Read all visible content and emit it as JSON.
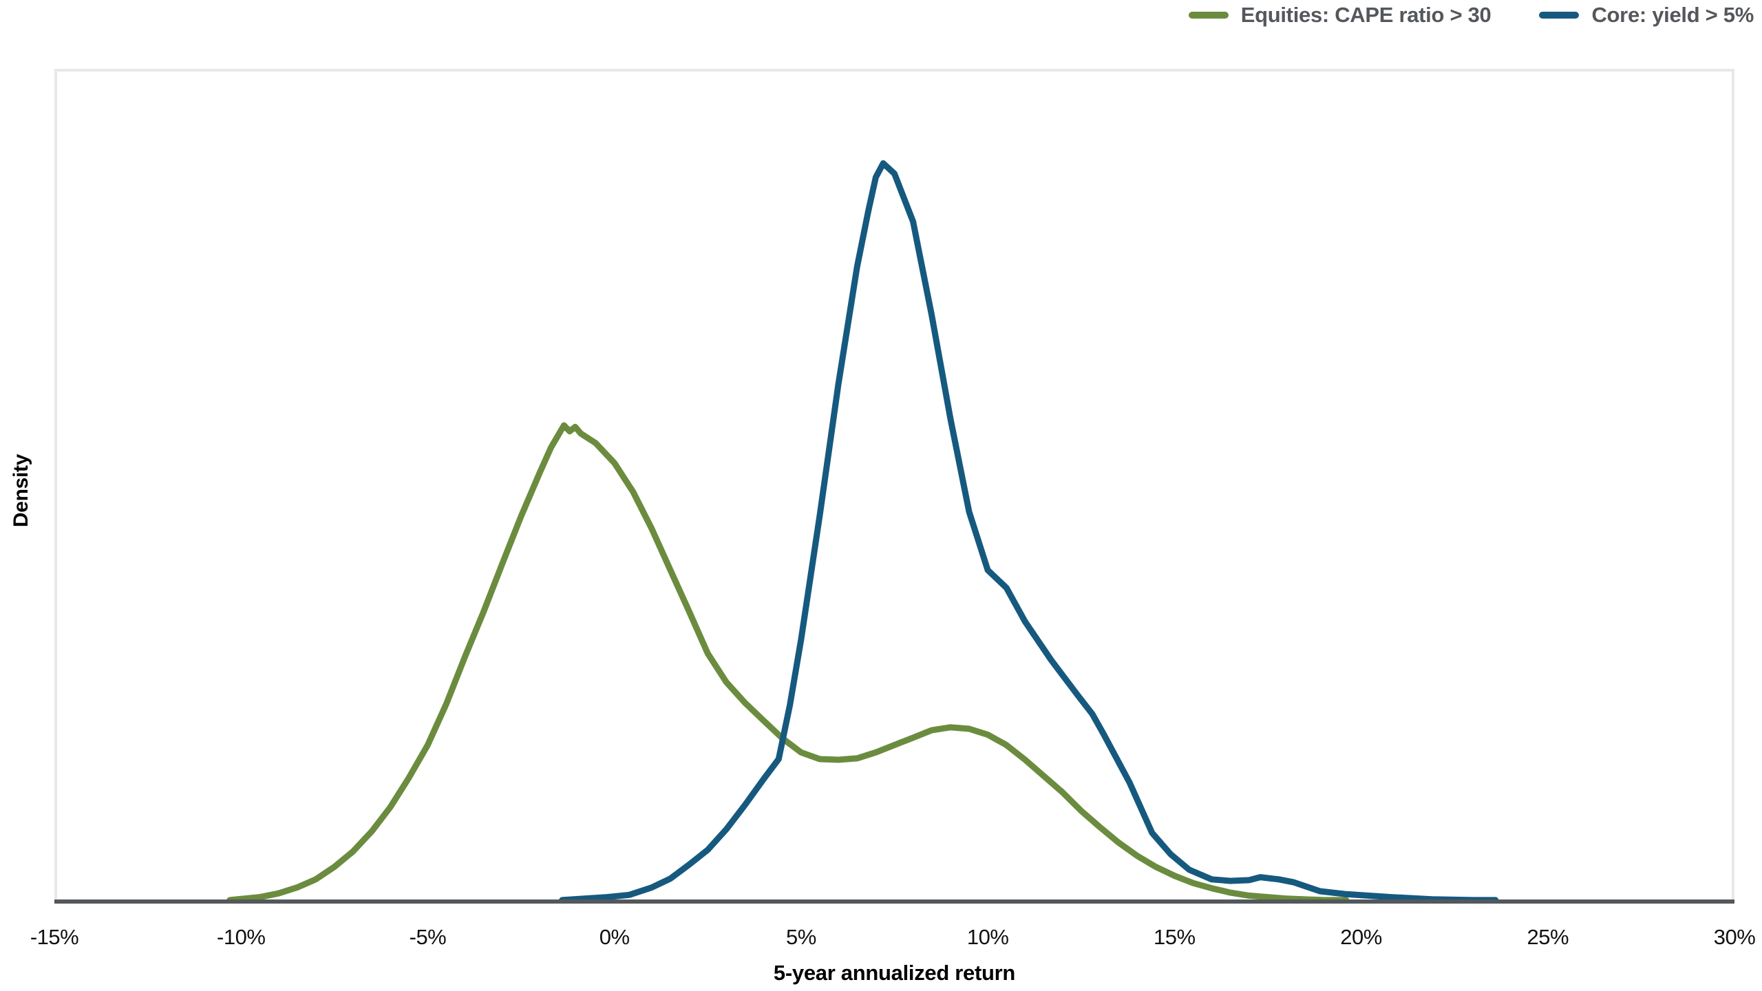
{
  "chart_data": {
    "type": "line",
    "subtype": "density",
    "title": "",
    "xlabel": "5-year annualized return",
    "ylabel": "Density",
    "xlim": [
      -15,
      30
    ],
    "ylim": [
      0,
      1.128
    ],
    "y_note": "relative density, no y tick labels shown (blue peak = 1.0)",
    "grid": false,
    "legend_position": "top-right",
    "x_ticks": [
      {
        "value": -15,
        "label": "-15%"
      },
      {
        "value": -10,
        "label": "-10%"
      },
      {
        "value": -5,
        "label": "-5%"
      },
      {
        "value": 0,
        "label": "0%"
      },
      {
        "value": 5,
        "label": "5%"
      },
      {
        "value": 10,
        "label": "10%"
      },
      {
        "value": 15,
        "label": "15%"
      },
      {
        "value": 20,
        "label": "20%"
      },
      {
        "value": 25,
        "label": "25%"
      },
      {
        "value": 30,
        "label": "30%"
      }
    ],
    "series": [
      {
        "name": "Equities: CAPE ratio > 30",
        "color": "#6b8c3e",
        "peak": {
          "x": -1.3,
          "y": 0.645
        },
        "points": [
          [
            -10.3,
            0.002
          ],
          [
            -9.5,
            0.006
          ],
          [
            -9.0,
            0.011
          ],
          [
            -8.5,
            0.019
          ],
          [
            -8.0,
            0.03
          ],
          [
            -7.5,
            0.047
          ],
          [
            -7.0,
            0.068
          ],
          [
            -6.5,
            0.095
          ],
          [
            -6.0,
            0.128
          ],
          [
            -5.5,
            0.168
          ],
          [
            -5.0,
            0.212
          ],
          [
            -4.5,
            0.268
          ],
          [
            -4.0,
            0.332
          ],
          [
            -3.5,
            0.393
          ],
          [
            -3.0,
            0.458
          ],
          [
            -2.5,
            0.522
          ],
          [
            -2.0,
            0.581
          ],
          [
            -1.7,
            0.615
          ],
          [
            -1.35,
            0.645
          ],
          [
            -1.2,
            0.637
          ],
          [
            -1.05,
            0.643
          ],
          [
            -0.9,
            0.634
          ],
          [
            -0.5,
            0.621
          ],
          [
            0.0,
            0.594
          ],
          [
            0.5,
            0.555
          ],
          [
            1.0,
            0.505
          ],
          [
            1.5,
            0.449
          ],
          [
            2.0,
            0.393
          ],
          [
            2.5,
            0.336
          ],
          [
            3.0,
            0.297
          ],
          [
            3.5,
            0.269
          ],
          [
            4.0,
            0.245
          ],
          [
            4.5,
            0.221
          ],
          [
            5.0,
            0.202
          ],
          [
            5.5,
            0.193
          ],
          [
            6.0,
            0.192
          ],
          [
            6.5,
            0.194
          ],
          [
            7.0,
            0.202
          ],
          [
            7.5,
            0.212
          ],
          [
            8.0,
            0.222
          ],
          [
            8.5,
            0.232
          ],
          [
            9.0,
            0.236
          ],
          [
            9.5,
            0.234
          ],
          [
            10.0,
            0.226
          ],
          [
            10.5,
            0.212
          ],
          [
            11.0,
            0.192
          ],
          [
            11.5,
            0.17
          ],
          [
            12.0,
            0.148
          ],
          [
            12.5,
            0.123
          ],
          [
            13.0,
            0.101
          ],
          [
            13.5,
            0.08
          ],
          [
            14.0,
            0.062
          ],
          [
            14.5,
            0.047
          ],
          [
            15.0,
            0.035
          ],
          [
            15.5,
            0.025
          ],
          [
            16.0,
            0.018
          ],
          [
            16.5,
            0.012
          ],
          [
            17.0,
            0.008
          ],
          [
            17.5,
            0.006
          ],
          [
            18.0,
            0.004
          ],
          [
            19.0,
            0.002
          ],
          [
            19.6,
            0.002
          ]
        ]
      },
      {
        "name": "Core: yield > 5%",
        "color": "#16597f",
        "peak": {
          "x": 7.2,
          "y": 1.0
        },
        "points": [
          [
            -1.4,
            0.002
          ],
          [
            -0.8,
            0.004
          ],
          [
            -0.2,
            0.006
          ],
          [
            0.4,
            0.009
          ],
          [
            1.0,
            0.019
          ],
          [
            1.5,
            0.031
          ],
          [
            2.0,
            0.05
          ],
          [
            2.5,
            0.07
          ],
          [
            3.0,
            0.098
          ],
          [
            3.5,
            0.131
          ],
          [
            4.0,
            0.166
          ],
          [
            4.4,
            0.193
          ],
          [
            4.7,
            0.266
          ],
          [
            5.0,
            0.355
          ],
          [
            5.5,
            0.523
          ],
          [
            6.0,
            0.701
          ],
          [
            6.5,
            0.86
          ],
          [
            6.8,
            0.935
          ],
          [
            7.0,
            0.981
          ],
          [
            7.2,
            1.0
          ],
          [
            7.5,
            0.986
          ],
          [
            8.0,
            0.921
          ],
          [
            8.5,
            0.794
          ],
          [
            9.0,
            0.654
          ],
          [
            9.5,
            0.528
          ],
          [
            10.0,
            0.449
          ],
          [
            10.5,
            0.425
          ],
          [
            11.0,
            0.379
          ],
          [
            11.7,
            0.327
          ],
          [
            12.4,
            0.28
          ],
          [
            12.8,
            0.254
          ],
          [
            13.1,
            0.227
          ],
          [
            13.8,
            0.161
          ],
          [
            14.4,
            0.093
          ],
          [
            14.9,
            0.064
          ],
          [
            15.4,
            0.043
          ],
          [
            16.0,
            0.03
          ],
          [
            16.5,
            0.028
          ],
          [
            17.0,
            0.029
          ],
          [
            17.3,
            0.033
          ],
          [
            17.8,
            0.03
          ],
          [
            18.2,
            0.026
          ],
          [
            18.9,
            0.014
          ],
          [
            19.6,
            0.01
          ],
          [
            20.8,
            0.006
          ],
          [
            21.9,
            0.003
          ],
          [
            23.0,
            0.002
          ],
          [
            23.6,
            0.002
          ]
        ]
      }
    ]
  },
  "legend": {
    "items": [
      {
        "label": "Equities: CAPE ratio > 30"
      },
      {
        "label": "Core: yield > 5%"
      }
    ]
  },
  "x_axis": {
    "label": "5-year annualized return"
  },
  "y_axis": {
    "label": "Density"
  },
  "colors": {
    "axis_line": "#54585c",
    "plot_border": "#e8e8e8",
    "tick_text": "#111111",
    "legend_text": "#54575b"
  }
}
